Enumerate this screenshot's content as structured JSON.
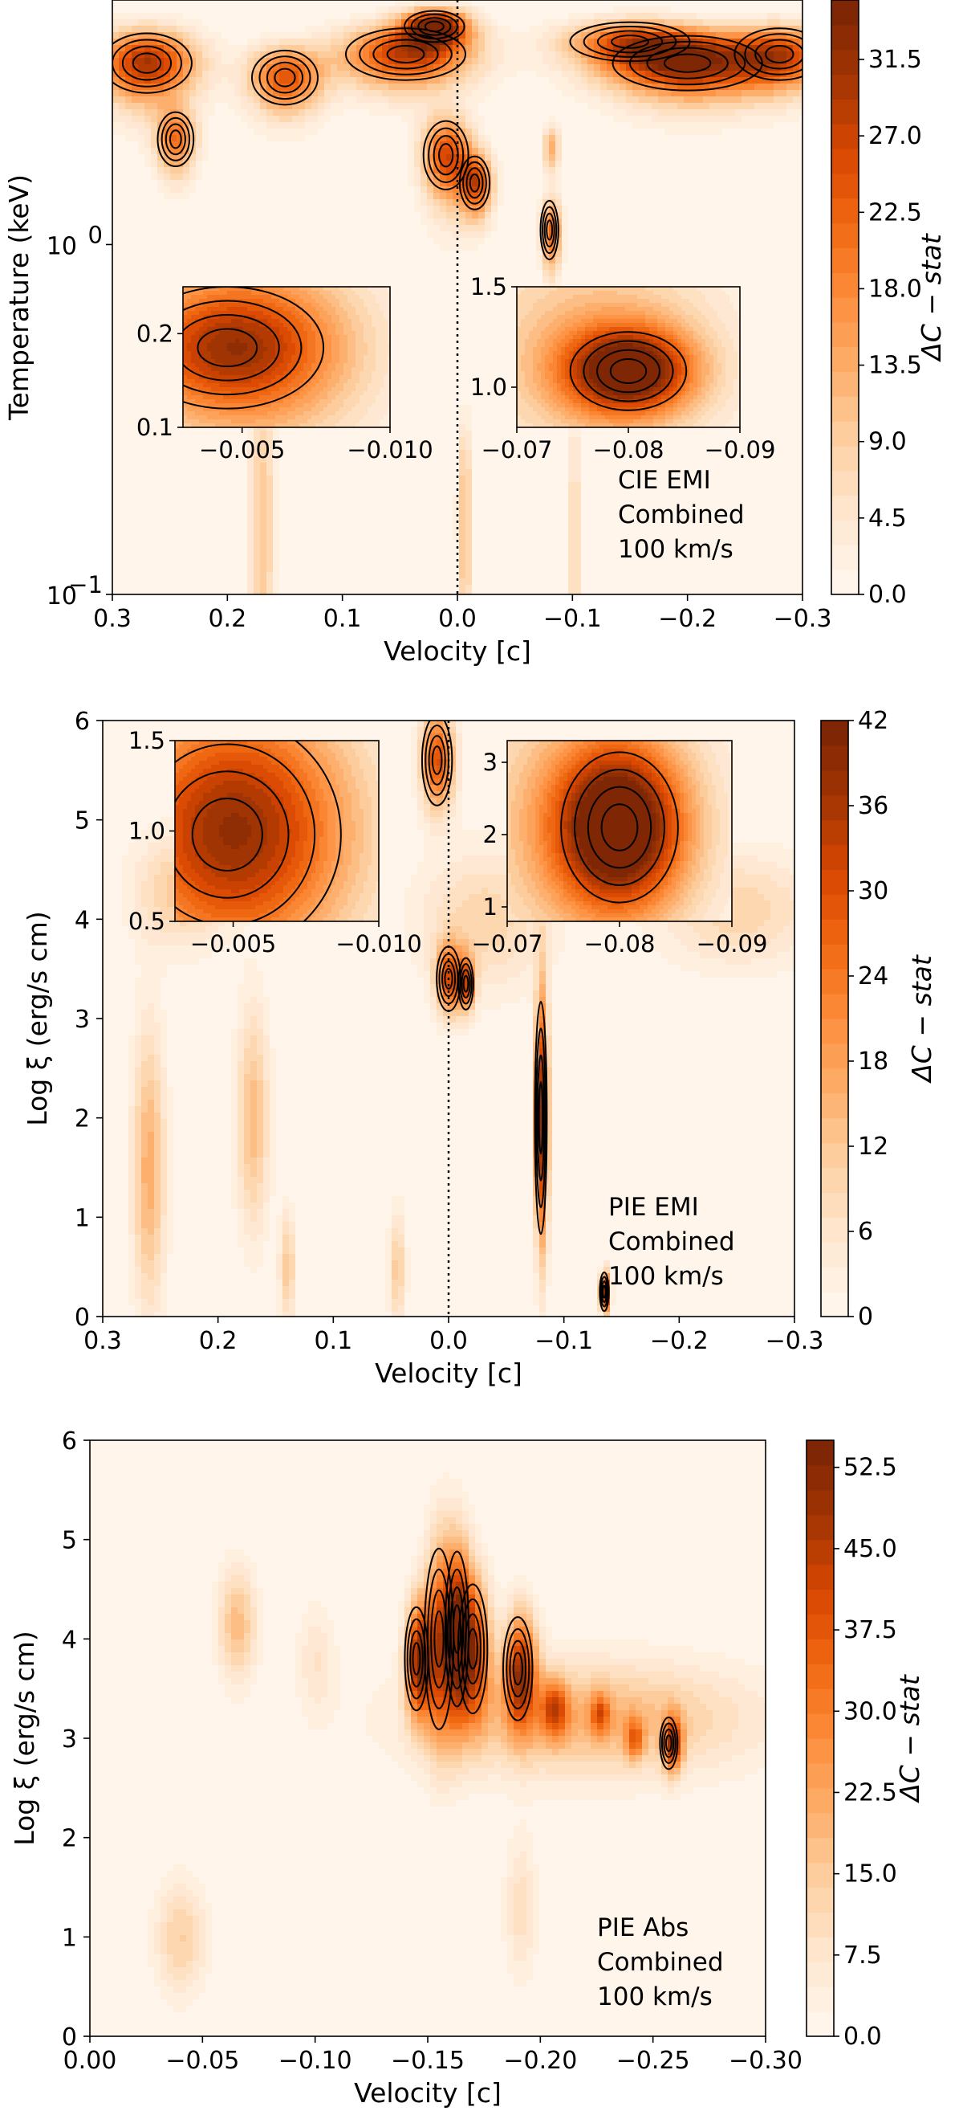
{
  "colors": {
    "cmap": [
      "#fff5eb",
      "#fee6ce",
      "#fdd0a2",
      "#fdae6b",
      "#fd8d3c",
      "#f16913",
      "#d94801",
      "#a63603",
      "#7f2704"
    ],
    "contour": "#000000",
    "frame": "#000000",
    "background": "#ffffff"
  },
  "chart_data": [
    {
      "type": "heatmap",
      "panel": "CIE EMI",
      "xlabel": "Velocity [c]",
      "ylabel": "Temperature (keV)",
      "x_range": [
        0.3,
        -0.3
      ],
      "x_ticks": [
        {
          "value": 0.3,
          "label": "0.3"
        },
        {
          "value": 0.2,
          "label": "0.2"
        },
        {
          "value": 0.1,
          "label": "0.1"
        },
        {
          "value": 0.0,
          "label": "0.0"
        },
        {
          "value": -0.1,
          "label": "−0.1"
        },
        {
          "value": -0.2,
          "label": "−0.2"
        },
        {
          "value": -0.3,
          "label": "−0.3"
        }
      ],
      "y_scale": "log",
      "y_range": [
        0.1,
        5.0
      ],
      "y_ticks": [
        {
          "value": 1.0,
          "base": "10",
          "exp": "0"
        },
        {
          "value": 0.1,
          "base": "10",
          "exp": "−1"
        }
      ],
      "colorbar": {
        "label": "ΔC − stat",
        "min": 0.0,
        "max": 35.0,
        "ticks": [
          "0.0",
          "4.5",
          "9.0",
          "13.5",
          "18.0",
          "22.5",
          "27.0",
          "31.5"
        ]
      },
      "annotation": [
        "CIE EMI",
        "Combined",
        "100 km/s"
      ],
      "zero_line": 0.0,
      "hotspots": [
        {
          "x": 0.27,
          "y": 3.3,
          "peak": 30,
          "sx": 0.03,
          "sy": 0.55
        },
        {
          "x": 0.245,
          "y": 2.0,
          "peak": 20,
          "sx": 0.012,
          "sy": 0.3
        },
        {
          "x": 0.15,
          "y": 3.0,
          "peak": 24,
          "sx": 0.022,
          "sy": 0.45
        },
        {
          "x": 0.045,
          "y": 3.5,
          "peak": 28,
          "sx": 0.04,
          "sy": 0.5
        },
        {
          "x": 0.02,
          "y": 4.2,
          "peak": 34,
          "sx": 0.02,
          "sy": 0.35
        },
        {
          "x": 0.01,
          "y": 1.8,
          "peak": 26,
          "sx": 0.015,
          "sy": 0.35
        },
        {
          "x": -0.015,
          "y": 1.5,
          "peak": 24,
          "sx": 0.01,
          "sy": 0.22
        },
        {
          "x": -0.08,
          "y": 1.1,
          "peak": 22,
          "sx": 0.006,
          "sy": 0.18
        },
        {
          "x": -0.08,
          "y": 1.9,
          "peak": 14,
          "sx": 0.005,
          "sy": 0.2
        },
        {
          "x": -0.2,
          "y": 3.3,
          "peak": 32,
          "sx": 0.05,
          "sy": 0.5
        },
        {
          "x": -0.15,
          "y": 3.8,
          "peak": 20,
          "sx": 0.04,
          "sy": 0.4
        },
        {
          "x": -0.28,
          "y": 3.5,
          "peak": 22,
          "sx": 0.03,
          "sy": 0.5
        },
        {
          "x": 0.17,
          "y": 0.17,
          "peak": 10,
          "sx": 0.008,
          "sy": 0.15
        },
        {
          "x": -0.005,
          "y": 0.17,
          "peak": 12,
          "sx": 0.004,
          "sy": 0.1
        },
        {
          "x": -0.1,
          "y": 0.12,
          "peak": 8,
          "sx": 0.004,
          "sy": 0.15
        }
      ],
      "insets": [
        {
          "x_range": [
            -0.003,
            -0.01
          ],
          "y_range": [
            0.1,
            0.25
          ],
          "x_ticks": [
            {
              "value": -0.005,
              "label": "−0.005"
            },
            {
              "value": -0.01,
              "label": "−0.010"
            }
          ],
          "y_ticks": [
            {
              "value": 0.2,
              "label": "0.2"
            },
            {
              "value": 0.1,
              "label": "0.1"
            }
          ],
          "hotspots": [
            {
              "x": -0.0045,
              "y": 0.185,
              "peak": 20,
              "sx": 0.0025,
              "sy": 0.05
            }
          ]
        },
        {
          "x_range": [
            -0.07,
            -0.09
          ],
          "y_range": [
            0.8,
            1.5
          ],
          "x_ticks": [
            {
              "value": -0.07,
              "label": "−0.07"
            },
            {
              "value": -0.08,
              "label": "−0.08"
            },
            {
              "value": -0.09,
              "label": "−0.09"
            }
          ],
          "y_ticks": [
            {
              "value": 1.5,
              "label": "1.5"
            },
            {
              "value": 1.0,
              "label": "1.0"
            }
          ],
          "hotspots": [
            {
              "x": -0.08,
              "y": 1.08,
              "peak": 32,
              "sx": 0.004,
              "sy": 0.15
            }
          ]
        }
      ]
    },
    {
      "type": "heatmap",
      "panel": "PIE EMI",
      "xlabel": "Velocity [c]",
      "ylabel": "Log ξ (erg/s cm)",
      "x_range": [
        0.3,
        -0.3
      ],
      "x_ticks": [
        {
          "value": 0.3,
          "label": "0.3"
        },
        {
          "value": 0.2,
          "label": "0.2"
        },
        {
          "value": 0.1,
          "label": "0.1"
        },
        {
          "value": 0.0,
          "label": "0.0"
        },
        {
          "value": -0.1,
          "label": "−0.1"
        },
        {
          "value": -0.2,
          "label": "−0.2"
        },
        {
          "value": -0.3,
          "label": "−0.3"
        }
      ],
      "y_scale": "linear",
      "y_range": [
        0,
        6
      ],
      "y_ticks": [
        {
          "value": 0,
          "label": "0"
        },
        {
          "value": 1,
          "label": "1"
        },
        {
          "value": 2,
          "label": "2"
        },
        {
          "value": 3,
          "label": "3"
        },
        {
          "value": 4,
          "label": "4"
        },
        {
          "value": 5,
          "label": "5"
        },
        {
          "value": 6,
          "label": "6"
        }
      ],
      "colorbar": {
        "label": "ΔC − stat",
        "min": 0,
        "max": 42,
        "ticks": [
          "0",
          "6",
          "12",
          "18",
          "24",
          "30",
          "36",
          "42"
        ]
      },
      "annotation": [
        "PIE EMI",
        "Combined",
        "100 km/s"
      ],
      "zero_line": 0.0,
      "hotspots": [
        {
          "x": -0.08,
          "y": 2.0,
          "peak": 40,
          "sx": 0.004,
          "sy": 0.9
        },
        {
          "x": 0.01,
          "y": 5.6,
          "peak": 30,
          "sx": 0.01,
          "sy": 0.35
        },
        {
          "x": 0.0,
          "y": 3.4,
          "peak": 28,
          "sx": 0.008,
          "sy": 0.25
        },
        {
          "x": -0.015,
          "y": 3.35,
          "peak": 24,
          "sx": 0.005,
          "sy": 0.2
        },
        {
          "x": 0.26,
          "y": 1.5,
          "peak": 16,
          "sx": 0.01,
          "sy": 1.0
        },
        {
          "x": 0.17,
          "y": 2.0,
          "peak": 14,
          "sx": 0.01,
          "sy": 0.8
        },
        {
          "x": 0.23,
          "y": 4.3,
          "peak": 12,
          "sx": 0.03,
          "sy": 0.4
        },
        {
          "x": 0.14,
          "y": 0.5,
          "peak": 12,
          "sx": 0.005,
          "sy": 0.4
        },
        {
          "x": 0.045,
          "y": 0.5,
          "peak": 12,
          "sx": 0.005,
          "sy": 0.4
        },
        {
          "x": -0.135,
          "y": 0.25,
          "peak": 36,
          "sx": 0.003,
          "sy": 0.15
        },
        {
          "x": -0.03,
          "y": 4.0,
          "peak": 10,
          "sx": 0.04,
          "sy": 0.5
        },
        {
          "x": -0.25,
          "y": 4.1,
          "peak": 10,
          "sx": 0.05,
          "sy": 0.4
        }
      ],
      "insets": [
        {
          "x_range": [
            -0.003,
            -0.01
          ],
          "y_range": [
            0.5,
            1.5
          ],
          "x_ticks": [
            {
              "value": -0.005,
              "label": "−0.005"
            },
            {
              "value": -0.01,
              "label": "−0.010"
            }
          ],
          "y_ticks": [
            {
              "value": 1.5,
              "label": "1.5"
            },
            {
              "value": 1.0,
              "label": "1.0"
            },
            {
              "value": 0.5,
              "label": "0.5"
            }
          ],
          "hotspots": [
            {
              "x": -0.0048,
              "y": 0.98,
              "peak": 24,
              "sx": 0.003,
              "sy": 0.5
            }
          ]
        },
        {
          "x_range": [
            -0.07,
            -0.09
          ],
          "y_range": [
            0.8,
            3.3
          ],
          "x_ticks": [
            {
              "value": -0.07,
              "label": "−0.07"
            },
            {
              "value": -0.08,
              "label": "−0.08"
            },
            {
              "value": -0.09,
              "label": "−0.09"
            }
          ],
          "y_ticks": [
            {
              "value": 3,
              "label": "3"
            },
            {
              "value": 2,
              "label": "2"
            },
            {
              "value": 1,
              "label": "1"
            }
          ],
          "hotspots": [
            {
              "x": -0.08,
              "y": 2.1,
              "peak": 40,
              "sx": 0.004,
              "sy": 0.8
            }
          ]
        }
      ]
    },
    {
      "type": "heatmap",
      "panel": "PIE Abs",
      "xlabel": "Velocity [c]",
      "ylabel": "Log ξ (erg/s cm)",
      "x_range": [
        0.0,
        -0.3
      ],
      "x_ticks": [
        {
          "value": 0.0,
          "label": "0.00"
        },
        {
          "value": -0.05,
          "label": "−0.05"
        },
        {
          "value": -0.1,
          "label": "−0.10"
        },
        {
          "value": -0.15,
          "label": "−0.15"
        },
        {
          "value": -0.2,
          "label": "−0.20"
        },
        {
          "value": -0.25,
          "label": "−0.25"
        },
        {
          "value": -0.3,
          "label": "−0.30"
        }
      ],
      "y_scale": "linear",
      "y_range": [
        0,
        6
      ],
      "y_ticks": [
        {
          "value": 0,
          "label": "0"
        },
        {
          "value": 1,
          "label": "1"
        },
        {
          "value": 2,
          "label": "2"
        },
        {
          "value": 3,
          "label": "3"
        },
        {
          "value": 4,
          "label": "4"
        },
        {
          "value": 5,
          "label": "5"
        },
        {
          "value": 6,
          "label": "6"
        }
      ],
      "colorbar": {
        "label": "ΔC − stat",
        "min": 0.0,
        "max": 55.0,
        "ticks": [
          "0.0",
          "7.5",
          "15.0",
          "22.5",
          "30.0",
          "37.5",
          "45.0",
          "52.5"
        ]
      },
      "annotation": [
        "PIE Abs",
        "Combined",
        "100 km/s"
      ],
      "hotspots": [
        {
          "x": -0.145,
          "y": 3.8,
          "peak": 48,
          "sx": 0.004,
          "sy": 0.4
        },
        {
          "x": -0.155,
          "y": 4.0,
          "peak": 40,
          "sx": 0.005,
          "sy": 0.7
        },
        {
          "x": -0.163,
          "y": 4.1,
          "peak": 40,
          "sx": 0.004,
          "sy": 0.6
        },
        {
          "x": -0.17,
          "y": 3.9,
          "peak": 38,
          "sx": 0.005,
          "sy": 0.5
        },
        {
          "x": -0.19,
          "y": 3.7,
          "peak": 44,
          "sx": 0.005,
          "sy": 0.4
        },
        {
          "x": -0.205,
          "y": 3.3,
          "peak": 28,
          "sx": 0.004,
          "sy": 0.2
        },
        {
          "x": -0.225,
          "y": 3.25,
          "peak": 22,
          "sx": 0.003,
          "sy": 0.15
        },
        {
          "x": -0.24,
          "y": 3.0,
          "peak": 22,
          "sx": 0.003,
          "sy": 0.15
        },
        {
          "x": -0.257,
          "y": 2.95,
          "peak": 38,
          "sx": 0.003,
          "sy": 0.2
        },
        {
          "x": -0.065,
          "y": 4.15,
          "peak": 18,
          "sx": 0.006,
          "sy": 0.4
        },
        {
          "x": -0.04,
          "y": 1.0,
          "peak": 14,
          "sx": 0.008,
          "sy": 0.4
        },
        {
          "x": -0.19,
          "y": 1.3,
          "peak": 10,
          "sx": 0.005,
          "sy": 0.5
        },
        {
          "x": -0.1,
          "y": 3.8,
          "peak": 8,
          "sx": 0.006,
          "sy": 0.4
        },
        {
          "x": -0.22,
          "y": 3.2,
          "peak": 20,
          "sx": 0.05,
          "sy": 0.4
        }
      ],
      "insets": []
    }
  ]
}
